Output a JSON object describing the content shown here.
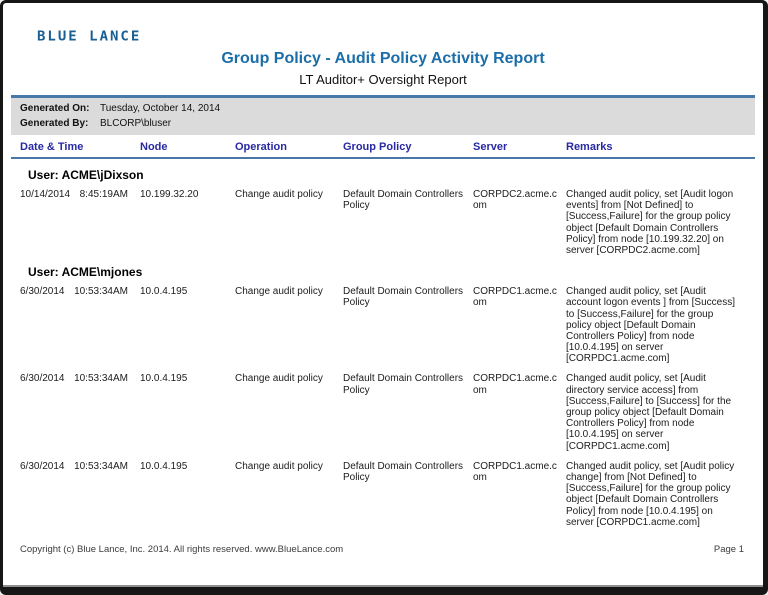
{
  "page": {
    "logo_text": "BLUE LANCE",
    "title": "Group Policy - Audit Policy Activity Report",
    "subtitle": "LT Auditor+ Oversight Report"
  },
  "meta": {
    "generated_on_label": "Generated On:",
    "generated_on": "Tuesday, October 14, 2014",
    "generated_by_label": "Generated By:",
    "generated_by": "BLCORP\\bluser"
  },
  "table": {
    "columns": [
      "Date & Time",
      "Node",
      "Operation",
      "Group Policy",
      "Server",
      "Remarks"
    ],
    "groups": [
      {
        "user": "User: ACME\\jDixson",
        "rows": [
          {
            "date": "10/14/2014",
            "time": "8:45:19AM",
            "node": "10.199.32.20",
            "operation": "Change audit policy",
            "group_policy": "Default Domain Controllers Policy",
            "server": "CORPDC2.acme.com",
            "remarks": "Changed audit policy, set [Audit logon events] from [Not Defined] to [Success,Failure] for the group policy object [Default Domain Controllers Policy] from node  [10.199.32.20] on server [CORPDC2.acme.com]"
          }
        ]
      },
      {
        "user": "User: ACME\\mjones",
        "rows": [
          {
            "date": "6/30/2014",
            "time": "10:53:34AM",
            "node": "10.0.4.195",
            "operation": "Change audit policy",
            "group_policy": "Default Domain Controllers Policy",
            "server": "CORPDC1.acme.com",
            "remarks": "Changed audit policy, set [Audit account logon events ] from [Success] to [Success,Failure] for the group policy object [Default Domain Controllers Policy] from node [10.0.4.195] on server [CORPDC1.acme.com]"
          },
          {
            "date": "6/30/2014",
            "time": "10:53:34AM",
            "node": "10.0.4.195",
            "operation": "Change audit policy",
            "group_policy": "Default Domain Controllers Policy",
            "server": "CORPDC1.acme.com",
            "remarks": "Changed audit policy, set [Audit directory service access] from [Success,Failure] to [Success] for the group policy object [Default Domain Controllers Policy] from node [10.0.4.195] on server [CORPDC1.acme.com]"
          },
          {
            "date": "6/30/2014",
            "time": "10:53:34AM",
            "node": "10.0.4.195",
            "operation": "Change audit policy",
            "group_policy": "Default Domain Controllers Policy",
            "server": "CORPDC1.acme.com",
            "remarks": "Changed audit policy, set [Audit policy change] from [Not Defined] to [Success,Failure] for the group policy object [Default Domain Controllers Policy] from node  [10.0.4.195] on server [CORPDC1.acme.com]"
          }
        ]
      }
    ]
  },
  "footer": {
    "copyright": "Copyright (c) Blue Lance, Inc. 2014. All rights reserved. www.BlueLance.com",
    "page_number": "Page 1"
  },
  "colors": {
    "title_blue": "#1b6ea8",
    "header_navy": "#2829a3",
    "rule_blue": "#4678a8",
    "meta_bg": "#dbdbdb"
  }
}
